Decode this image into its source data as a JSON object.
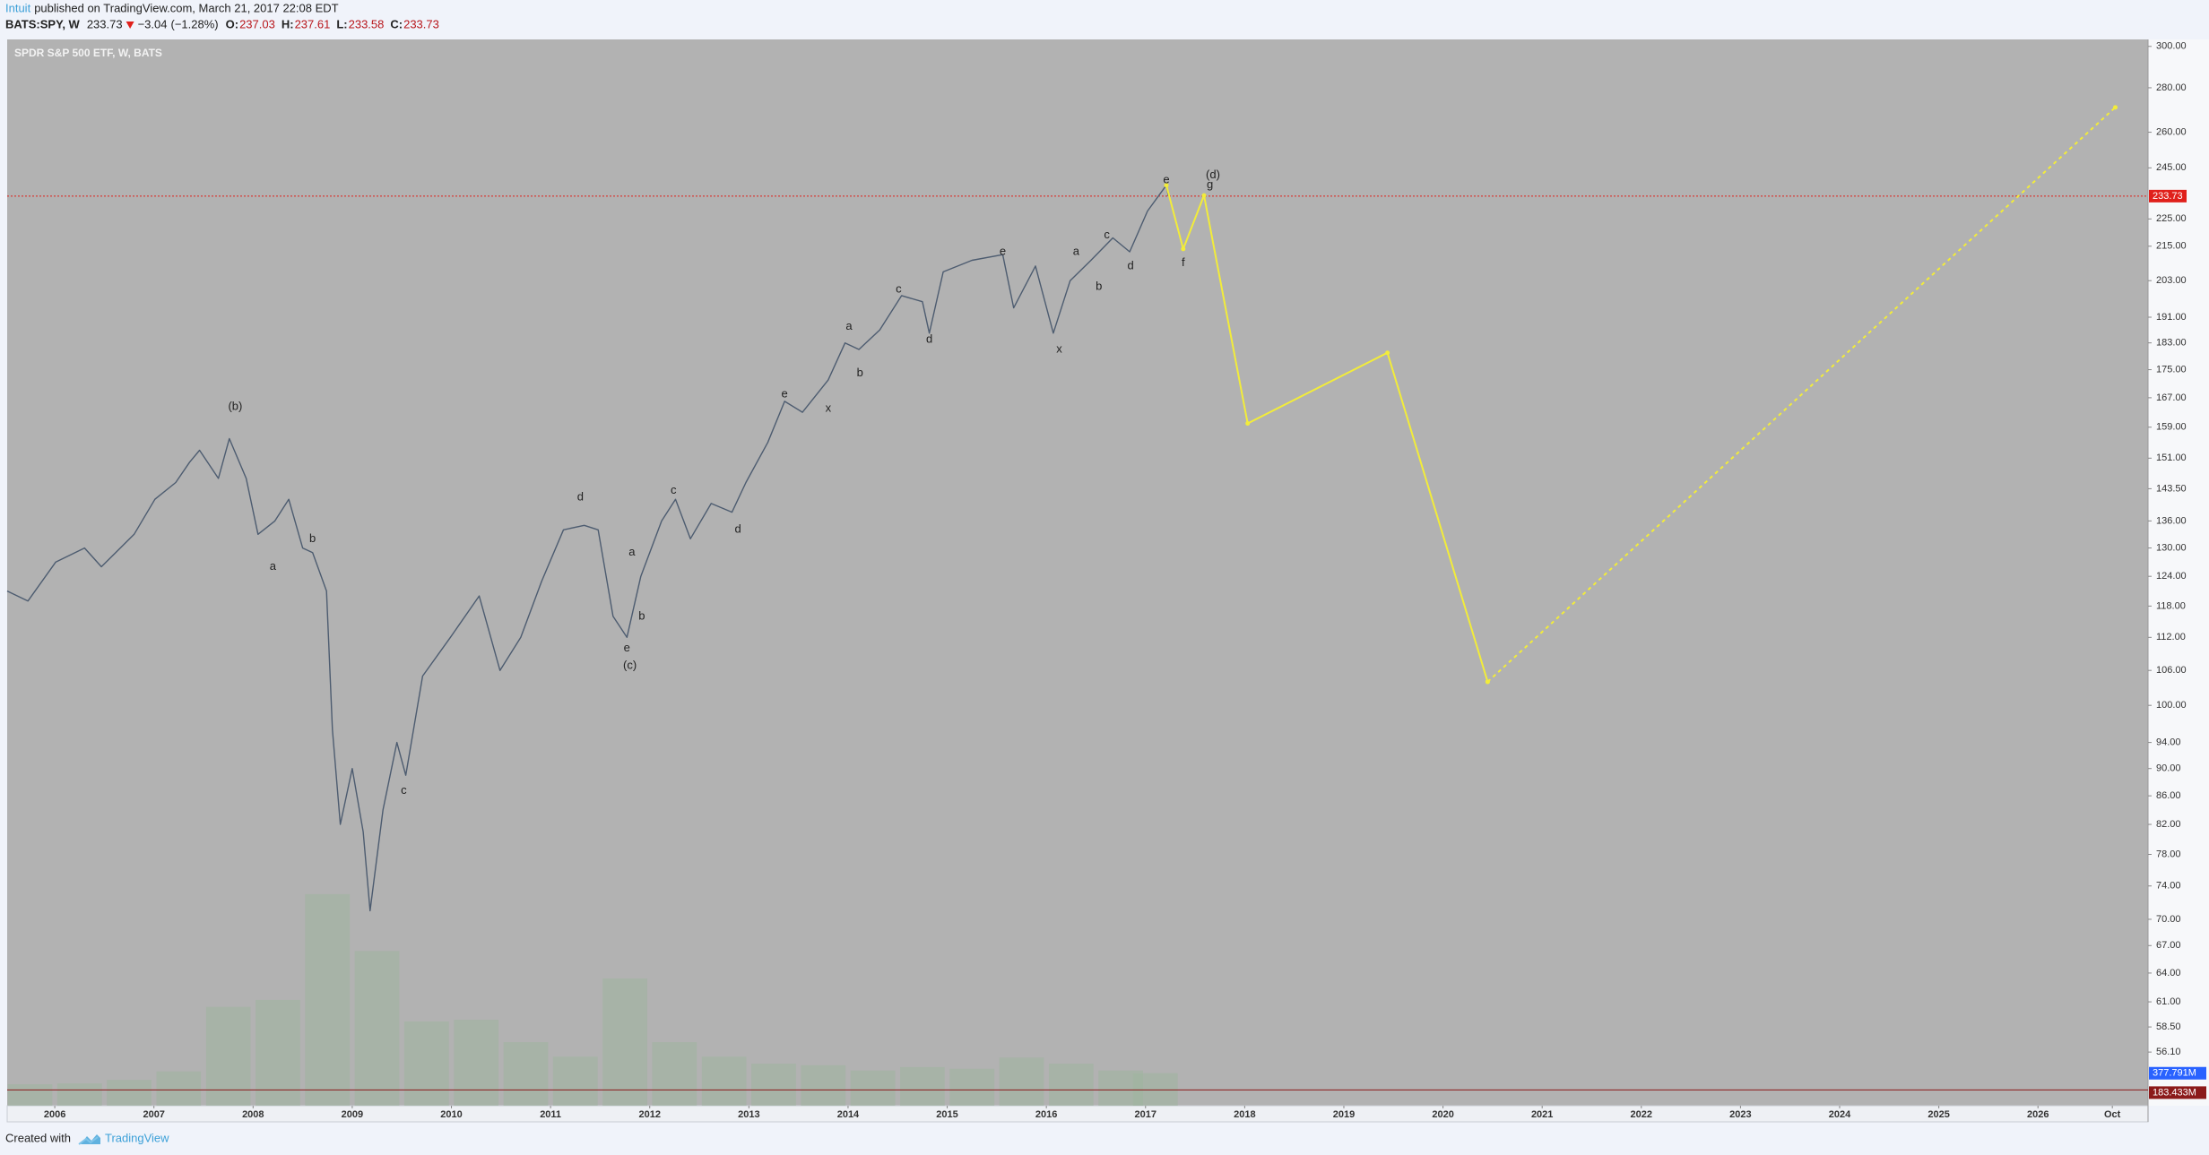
{
  "header": {
    "author": "Intuit",
    "published": "published on TradingView.com, March 21, 2017 22:08 EDT",
    "symbol": "BATS:SPY, W",
    "last": 233.73,
    "change": {
      "value": -3.04,
      "label": "−3.04"
    },
    "change_pct": {
      "value": -1.28,
      "label": "(−1.28%)"
    },
    "ohlc": [
      {
        "label": "O:",
        "value": 237.03
      },
      {
        "label": "H:",
        "value": 237.61
      },
      {
        "label": "L:",
        "value": 233.58
      },
      {
        "label": "C:",
        "value": 233.73
      }
    ]
  },
  "footer": {
    "created": "Created with",
    "brand": "TradingView"
  },
  "chart_data": {
    "type": "line",
    "title": "SPDR S&P 500 ETF, W, BATS",
    "log_y": true,
    "xlim": [
      2005.52,
      2027.11
    ],
    "ylim": [
      51.3,
      303.5
    ],
    "xticks": [
      2006,
      2007,
      2008,
      2009,
      2010,
      2011,
      2012,
      2013,
      2014,
      2015,
      2016,
      2017,
      2018,
      2019,
      2020,
      2021,
      2022,
      2023,
      2024,
      2025,
      2026,
      {
        "value": 2026.75,
        "label": "Oct"
      }
    ],
    "yticks": [
      {
        "value": 300,
        "label": "300.00"
      },
      {
        "value": 280,
        "label": "280.00"
      },
      {
        "value": 260,
        "label": "260.00"
      },
      {
        "value": 245,
        "label": "245.00"
      },
      {
        "value": 225,
        "label": "225.00"
      },
      {
        "value": 215,
        "label": "215.00"
      },
      {
        "value": 203,
        "label": "203.00"
      },
      {
        "value": 191,
        "label": "191.00"
      },
      {
        "value": 183,
        "label": "183.00"
      },
      {
        "value": 175,
        "label": "175.00"
      },
      {
        "value": 167,
        "label": "167.00"
      },
      {
        "value": 159,
        "label": "159.00"
      },
      {
        "value": 151,
        "label": "151.00"
      },
      {
        "value": 143.5,
        "label": "143.50"
      },
      {
        "value": 136,
        "label": "136.00"
      },
      {
        "value": 130,
        "label": "130.00"
      },
      {
        "value": 124,
        "label": "124.00"
      },
      {
        "value": 118,
        "label": "118.00"
      },
      {
        "value": 112,
        "label": "112.00"
      },
      {
        "value": 106,
        "label": "106.00"
      },
      {
        "value": 100,
        "label": "100.00"
      },
      {
        "value": 94,
        "label": "94.00"
      },
      {
        "value": 90,
        "label": "90.00"
      },
      {
        "value": 86,
        "label": "86.00"
      },
      {
        "value": 82,
        "label": "82.00"
      },
      {
        "value": 78,
        "label": "78.00"
      },
      {
        "value": 74,
        "label": "74.00"
      },
      {
        "value": 70,
        "label": "70.00"
      },
      {
        "value": 67,
        "label": "67.00"
      },
      {
        "value": 64,
        "label": "64.00"
      },
      {
        "value": 61,
        "label": "61.00"
      },
      {
        "value": 58.5,
        "label": "58.50"
      },
      {
        "value": 56.1,
        "label": "56.10"
      }
    ],
    "last_price": {
      "value": 233.73,
      "color": "#e0201b"
    },
    "series": [
      {
        "color": "#4d5c70",
        "dashed": false,
        "x": [
          2005.52,
          2005.73,
          2006.01,
          2006.3,
          2006.47,
          2006.8,
          2007.01,
          2007.22,
          2007.36,
          2007.46,
          2007.65,
          2007.76,
          2007.93,
          2008.05,
          2008.22,
          2008.36,
          2008.5,
          2008.6,
          2008.74,
          2008.8,
          2008.88,
          2009.0,
          2009.11,
          2009.18,
          2009.31,
          2009.45,
          2009.54,
          2009.71,
          2009.99,
          2010.28,
          2010.49,
          2010.7,
          2010.91,
          2011.13,
          2011.34,
          2011.48,
          2011.63,
          2011.77,
          2011.91,
          2012.12,
          2012.26,
          2012.41,
          2012.62,
          2012.83,
          2012.97,
          2013.19,
          2013.36,
          2013.54,
          2013.8,
          2013.97,
          2014.11,
          2014.32,
          2014.54,
          2014.75,
          2014.82,
          2014.96,
          2015.25,
          2015.56,
          2015.67,
          2015.89,
          2016.07,
          2016.24,
          2016.45,
          2016.67,
          2016.84,
          2017.02,
          2017.21,
          2017.23
        ],
        "values": [
          121,
          119,
          127,
          130,
          126,
          133,
          141,
          145,
          150,
          153,
          146,
          156,
          146,
          133,
          136,
          141,
          130,
          129,
          121,
          96,
          82,
          90,
          81,
          71,
          84,
          94,
          89,
          105,
          112,
          120,
          106,
          112,
          123,
          134,
          135,
          134,
          116,
          112,
          124,
          136,
          141,
          132,
          140,
          138,
          145,
          155,
          166,
          163,
          172,
          183,
          181,
          187,
          198,
          196,
          186,
          206,
          210,
          212,
          194,
          208,
          186,
          203,
          210,
          218,
          213,
          228,
          238,
          233.73
        ]
      },
      {
        "color": "#f2ec3a",
        "dashed": false,
        "x": [
          2017.21,
          2017.38,
          2017.59,
          2018.03,
          2019.44,
          2020.45
        ],
        "values": [
          238,
          214,
          234,
          160,
          180,
          104
        ]
      },
      {
        "color": "#f2ec3a",
        "dashed": true,
        "x": [
          2020.45,
          2026.78
        ],
        "values": [
          104,
          271
        ]
      }
    ],
    "volume": {
      "color": "#9fb59f",
      "ylim": [
        0,
        12400
      ],
      "x": [
        2005.75,
        2006.25,
        2006.75,
        2007.25,
        2007.75,
        2008.25,
        2008.75,
        2009.25,
        2009.75,
        2010.25,
        2010.75,
        2011.25,
        2011.75,
        2012.25,
        2012.75,
        2013.25,
        2013.75,
        2014.25,
        2014.75,
        2015.25,
        2015.75,
        2016.25,
        2016.75,
        2017.1
      ],
      "values": [
        250,
        260,
        300,
        400,
        1150,
        1230,
        2460,
        1800,
        980,
        1000,
        740,
        570,
        1480,
        740,
        570,
        490,
        470,
        410,
        450,
        430,
        560,
        490,
        410,
        377.791
      ],
      "value_labels": [
        null,
        null,
        null,
        null,
        null,
        null,
        null,
        null,
        null,
        null,
        null,
        null,
        null,
        null,
        null,
        null,
        null,
        null,
        null,
        null,
        null,
        null,
        null,
        "377.791M"
      ],
      "label_color": "#2962ff"
    },
    "volume_ma": {
      "value": 183.433,
      "label": "183.433M",
      "color": "#8b1a1a"
    },
    "annotations": [
      {
        "text": "(b)",
        "x": 2007.82,
        "y": 164.5
      },
      {
        "text": "a",
        "x": 2008.2,
        "y": 126
      },
      {
        "text": "b",
        "x": 2008.6,
        "y": 132
      },
      {
        "text": "c",
        "x": 2009.52,
        "y": 86.7
      },
      {
        "text": "d",
        "x": 2011.3,
        "y": 141.5
      },
      {
        "text": "a",
        "x": 2011.82,
        "y": 129
      },
      {
        "text": "b",
        "x": 2011.92,
        "y": 116
      },
      {
        "text": "e",
        "x": 2011.77,
        "y": 110
      },
      {
        "text": "(c)",
        "x": 2011.8,
        "y": 106.8
      },
      {
        "text": "c",
        "x": 2012.24,
        "y": 143
      },
      {
        "text": "d",
        "x": 2012.89,
        "y": 134
      },
      {
        "text": "e",
        "x": 2013.36,
        "y": 168
      },
      {
        "text": "x",
        "x": 2013.8,
        "y": 164
      },
      {
        "text": "a",
        "x": 2014.01,
        "y": 188
      },
      {
        "text": "b",
        "x": 2014.12,
        "y": 174
      },
      {
        "text": "c",
        "x": 2014.51,
        "y": 200
      },
      {
        "text": "d",
        "x": 2014.82,
        "y": 184
      },
      {
        "text": "e",
        "x": 2015.56,
        "y": 213
      },
      {
        "text": "x",
        "x": 2016.13,
        "y": 181
      },
      {
        "text": "a",
        "x": 2016.3,
        "y": 213
      },
      {
        "text": "b",
        "x": 2016.53,
        "y": 201
      },
      {
        "text": "c",
        "x": 2016.61,
        "y": 219
      },
      {
        "text": "d",
        "x": 2016.85,
        "y": 208
      },
      {
        "text": "e",
        "x": 2017.21,
        "y": 240
      },
      {
        "text": "(d)",
        "x": 2017.68,
        "y": 242
      },
      {
        "text": "g",
        "x": 2017.65,
        "y": 238
      },
      {
        "text": "f",
        "x": 2017.38,
        "y": 209
      }
    ]
  }
}
